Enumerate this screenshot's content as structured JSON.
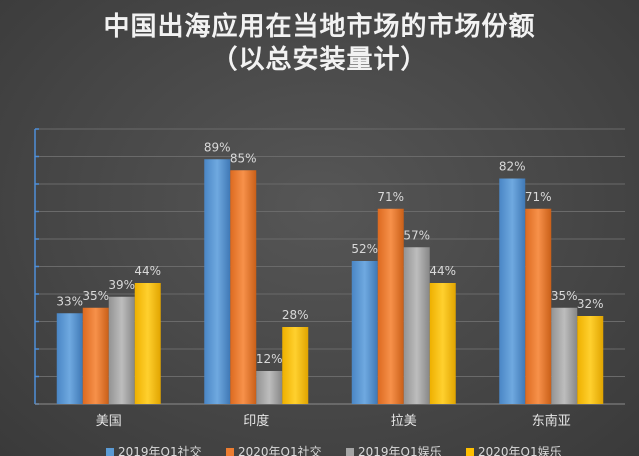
{
  "title": {
    "line1": "中国出海应用在当地市场的市场份额",
    "line2": "（以总安装量计）"
  },
  "chart_data": {
    "type": "bar",
    "categories": [
      "美国",
      "印度",
      "拉美",
      "东南亚"
    ],
    "series": [
      {
        "name": "2019年Q1社交",
        "values": [
          33,
          89,
          52,
          82
        ],
        "labels": [
          "33%",
          "89%",
          "52%",
          "82%"
        ],
        "color": "#5b9bd5"
      },
      {
        "name": "2020年Q1社交",
        "values": [
          35,
          85,
          71,
          71
        ],
        "labels": [
          "35%",
          "85%",
          "71%",
          "71%"
        ],
        "color": "#ed7d31"
      },
      {
        "name": "2019年Q1娱乐",
        "values": [
          39,
          12,
          57,
          35
        ],
        "labels": [
          "39%",
          "12%",
          "57%",
          "35%"
        ],
        "color": "#a5a5a5"
      },
      {
        "name": "2020年Q1娱乐",
        "values": [
          44,
          28,
          44,
          32
        ],
        "labels": [
          "44%",
          "28%",
          "44%",
          "32%"
        ],
        "color": "#ffc000"
      }
    ],
    "ylim": [
      0,
      100
    ],
    "grid": true,
    "legend": "bottom"
  }
}
